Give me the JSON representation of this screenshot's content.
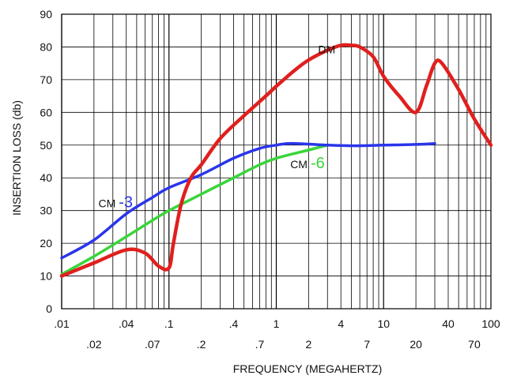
{
  "chart_data": {
    "type": "line",
    "title": "",
    "xlabel": "FREQUENCY (MEGAHERTZ)",
    "ylabel": "INSERTION LOSS (db)",
    "x_scale": "log",
    "xlim": [
      0.01,
      100
    ],
    "ylim": [
      0,
      90
    ],
    "grid": true,
    "legend": "none",
    "x_ticks_upper": [
      ".01",
      ".04",
      ".1",
      ".4",
      "1",
      "4",
      "10",
      "40",
      "100"
    ],
    "x_ticks_lower": [
      ".02",
      ".07",
      ".2",
      ".7",
      "2",
      "7",
      "20",
      "70"
    ],
    "y_ticks": [
      "0",
      "10",
      "20",
      "30",
      "40",
      "50",
      "60",
      "70",
      "80",
      "90"
    ],
    "series": [
      {
        "name": "DM",
        "label_prefix": "DM",
        "label_suffix": "",
        "color": "#e0201e",
        "x": [
          0.01,
          0.02,
          0.04,
          0.06,
          0.08,
          0.1,
          0.11,
          0.13,
          0.16,
          0.2,
          0.3,
          0.5,
          0.8,
          1,
          1.5,
          2,
          3,
          4,
          5,
          6,
          8,
          10,
          14,
          20,
          25,
          30,
          35,
          50,
          70,
          100
        ],
        "y": [
          10,
          14,
          18,
          17,
          13,
          12.5,
          20,
          32,
          40,
          44,
          52,
          59,
          65,
          68,
          73,
          76,
          79,
          80.5,
          80.5,
          80,
          77,
          71,
          65,
          60,
          68,
          75,
          75,
          67,
          58,
          50
        ]
      },
      {
        "name": "CM-3",
        "label_prefix": "CM",
        "label_suffix": "-3",
        "color": "#2a35ea",
        "x": [
          0.01,
          0.02,
          0.04,
          0.07,
          0.1,
          0.2,
          0.4,
          0.7,
          1,
          1.3,
          2,
          3,
          5,
          10,
          20,
          30
        ],
        "y": [
          15.5,
          21,
          29,
          34,
          37,
          41,
          46,
          49,
          50,
          50.5,
          50.3,
          50,
          49.8,
          50,
          50.2,
          50.5
        ]
      },
      {
        "name": "CM-6",
        "label_prefix": "CM",
        "label_suffix": "-6",
        "color": "#39d53a",
        "x": [
          0.01,
          0.02,
          0.04,
          0.07,
          0.1,
          0.2,
          0.4,
          0.7,
          1,
          2,
          3
        ],
        "y": [
          10.5,
          16,
          22,
          27,
          30,
          35,
          40,
          44,
          46,
          48.5,
          50
        ]
      }
    ]
  }
}
